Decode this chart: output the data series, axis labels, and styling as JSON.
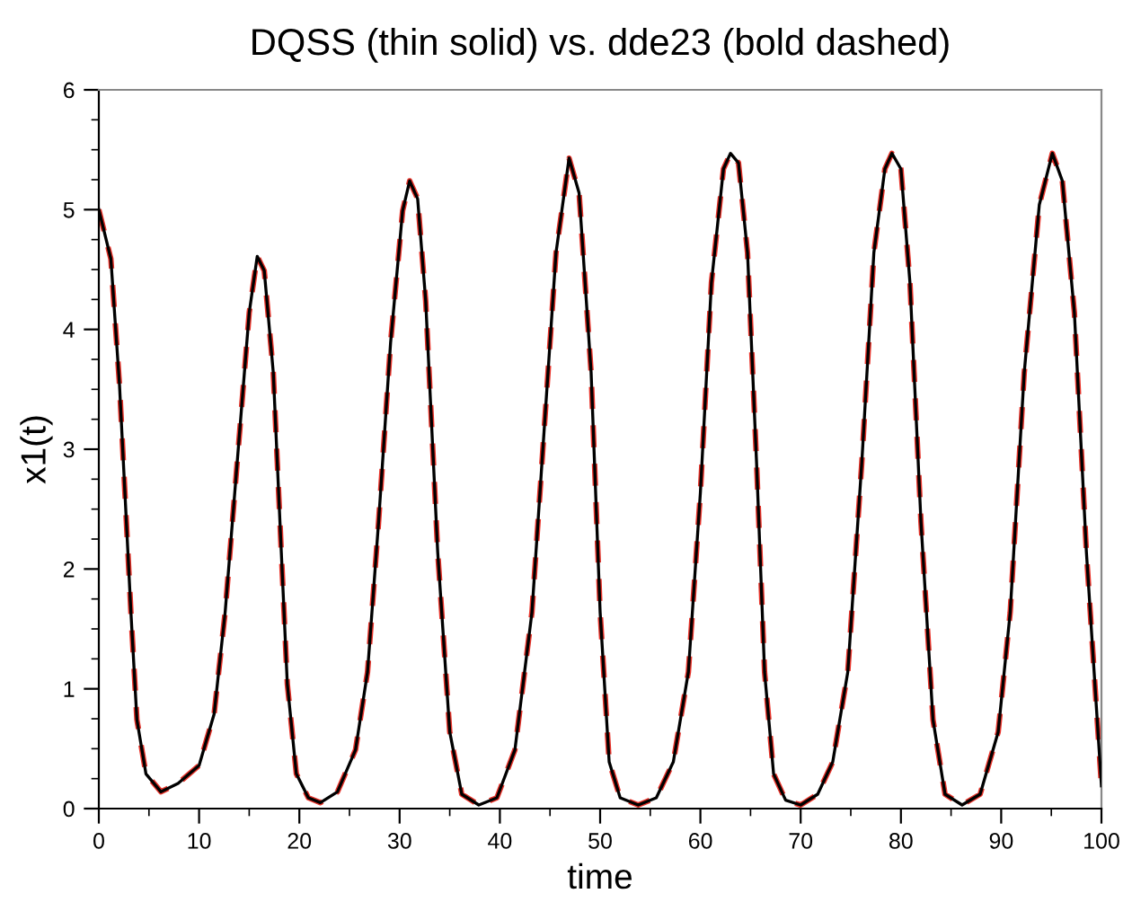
{
  "chart_data": {
    "type": "line",
    "title": "DQSS (thin solid) vs. dde23 (bold dashed)",
    "xlabel": "time",
    "ylabel": "x1(t)",
    "xlim": [
      0,
      100
    ],
    "ylim": [
      0,
      6
    ],
    "xticks": [
      0,
      {
        "value": 5,
        "label": null
      },
      10,
      {
        "value": 15,
        "label": null
      },
      20,
      {
        "value": 25,
        "label": null
      },
      30,
      {
        "value": 35,
        "label": null
      },
      40,
      {
        "value": 45,
        "label": null
      },
      50,
      {
        "value": 55,
        "label": null
      },
      60,
      {
        "value": 65,
        "label": null
      },
      70,
      {
        "value": 75,
        "label": null
      },
      80,
      {
        "value": 85,
        "label": null
      },
      90,
      {
        "value": 95,
        "label": null
      },
      100
    ],
    "yticks": [
      0,
      {
        "value": 0.25,
        "label": null
      },
      {
        "value": 0.5,
        "label": null
      },
      {
        "value": 0.75,
        "label": null
      },
      1,
      {
        "value": 1.25,
        "label": null
      },
      {
        "value": 1.5,
        "label": null
      },
      {
        "value": 1.75,
        "label": null
      },
      2,
      {
        "value": 2.25,
        "label": null
      },
      {
        "value": 2.5,
        "label": null
      },
      {
        "value": 2.75,
        "label": null
      },
      3,
      {
        "value": 3.25,
        "label": null
      },
      {
        "value": 3.5,
        "label": null
      },
      {
        "value": 3.75,
        "label": null
      },
      4,
      {
        "value": 4.25,
        "label": null
      },
      {
        "value": 4.5,
        "label": null
      },
      {
        "value": 4.75,
        "label": null
      },
      5,
      {
        "value": 5.25,
        "label": null
      },
      {
        "value": 5.5,
        "label": null
      },
      {
        "value": 5.75,
        "label": null
      },
      6
    ],
    "grid": false,
    "x": [
      0,
      1.2,
      2.06,
      2.6,
      3.2,
      3.8,
      4.7,
      6.2,
      7.9,
      10,
      11.5,
      12.6,
      13.8,
      15,
      15.8,
      16.5,
      17.4,
      18.2,
      18.8,
      19.7,
      20.9,
      22.1,
      23.8,
      25.6,
      26.8,
      27.9,
      29.1,
      30.3,
      31,
      31.8,
      32.6,
      33.8,
      35,
      36.2,
      37.9,
      39.7,
      41.5,
      43.2,
      44.4,
      45.6,
      46.9,
      47.9,
      49.1,
      50,
      50.9,
      52,
      53.8,
      55.6,
      57.3,
      58.8,
      60,
      61.1,
      62.3,
      63,
      63.8,
      64.7,
      65.6,
      66.4,
      67.3,
      68.5,
      70,
      71.7,
      73.2,
      74.7,
      76.1,
      77.3,
      78.4,
      79.1,
      80,
      80.9,
      82,
      83.2,
      84.4,
      86.1,
      87.9,
      89.7,
      90.9,
      92.3,
      93.8,
      95.1,
      96.1,
      97.3,
      98.5,
      100
    ],
    "series": [
      {
        "color": "#e8332a",
        "line_style": "dashed",
        "values": [
          5.0,
          4.59,
          3.54,
          2.64,
          1.64,
          0.74,
          0.29,
          0.14,
          0.21,
          0.36,
          0.79,
          1.64,
          2.89,
          4.14,
          4.61,
          4.49,
          3.64,
          2.14,
          1.04,
          0.29,
          0.09,
          0.05,
          0.14,
          0.49,
          1.14,
          2.39,
          3.89,
          4.99,
          5.24,
          5.09,
          4.24,
          2.14,
          0.64,
          0.12,
          0.03,
          0.09,
          0.49,
          1.64,
          3.14,
          4.64,
          5.43,
          5.14,
          3.64,
          1.64,
          0.39,
          0.09,
          0.03,
          0.09,
          0.39,
          1.14,
          2.64,
          4.39,
          5.34,
          5.47,
          5.39,
          4.64,
          2.89,
          1.14,
          0.29,
          0.07,
          0.03,
          0.12,
          0.39,
          1.14,
          2.89,
          4.64,
          5.34,
          5.47,
          5.34,
          4.39,
          2.39,
          0.74,
          0.12,
          0.03,
          0.12,
          0.64,
          1.64,
          3.64,
          5.04,
          5.47,
          5.24,
          4.14,
          2.14,
          0.19
        ]
      },
      {
        "color": "#000000",
        "line_style": "solid",
        "values": [
          5.0,
          4.59,
          3.54,
          2.64,
          1.64,
          0.74,
          0.29,
          0.14,
          0.21,
          0.36,
          0.79,
          1.64,
          2.89,
          4.14,
          4.61,
          4.49,
          3.64,
          2.14,
          1.04,
          0.29,
          0.09,
          0.05,
          0.14,
          0.49,
          1.14,
          2.39,
          3.89,
          4.99,
          5.24,
          5.09,
          4.24,
          2.14,
          0.64,
          0.12,
          0.03,
          0.09,
          0.49,
          1.64,
          3.14,
          4.64,
          5.43,
          5.14,
          3.64,
          1.64,
          0.39,
          0.09,
          0.03,
          0.09,
          0.39,
          1.14,
          2.64,
          4.39,
          5.34,
          5.47,
          5.39,
          4.64,
          2.89,
          1.14,
          0.29,
          0.07,
          0.03,
          0.12,
          0.39,
          1.14,
          2.89,
          4.64,
          5.34,
          5.47,
          5.34,
          4.39,
          2.39,
          0.74,
          0.12,
          0.03,
          0.12,
          0.64,
          1.64,
          3.64,
          5.04,
          5.47,
          5.24,
          4.14,
          2.14,
          0.19
        ]
      }
    ]
  }
}
